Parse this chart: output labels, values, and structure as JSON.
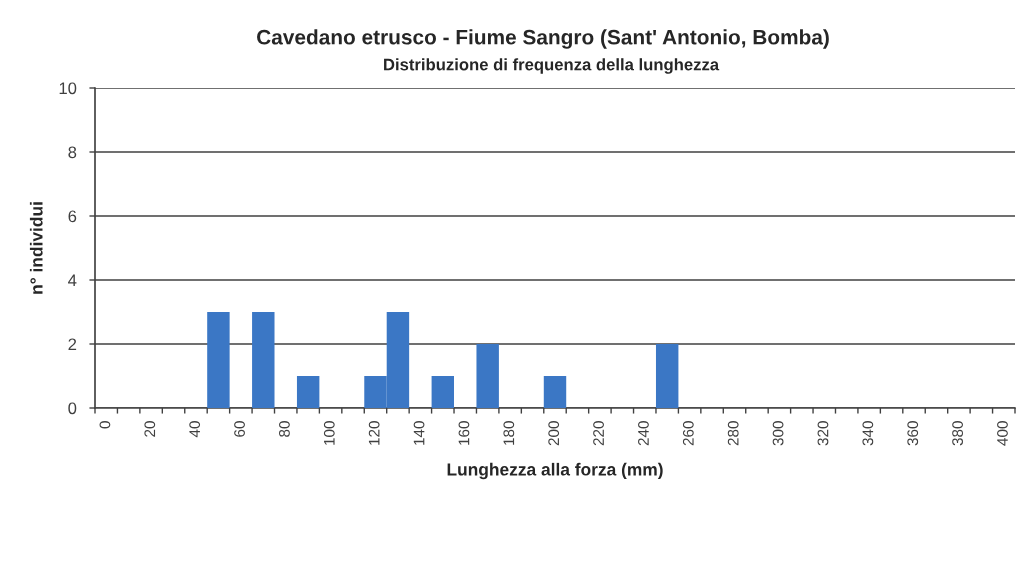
{
  "chart_data": {
    "type": "bar",
    "title": "Cavedano etrusco - Fiume Sangro (Sant' Antonio, Bomba)",
    "subtitle": "Distribuzione di frequenza della lunghezza",
    "xlabel": "Lunghezza alla forza (mm)",
    "ylabel": "n° individui",
    "categories": [
      "0",
      null,
      "20",
      null,
      "40",
      null,
      "60",
      null,
      "80",
      null,
      "100",
      null,
      "120",
      null,
      "140",
      null,
      "160",
      null,
      "180",
      null,
      "200",
      null,
      "220",
      null,
      "240",
      null,
      "260",
      null,
      "280",
      null,
      "300",
      null,
      "320",
      null,
      "340",
      null,
      "360",
      null,
      "380",
      null,
      "400"
    ],
    "values": [
      0,
      0,
      0,
      0,
      0,
      3,
      0,
      3,
      0,
      1,
      0,
      0,
      1,
      3,
      0,
      1,
      0,
      2,
      0,
      0,
      1,
      0,
      0,
      0,
      0,
      2,
      0,
      0,
      0,
      0,
      0,
      0,
      0,
      0,
      0,
      0,
      0,
      0,
      0,
      0,
      0
    ],
    "color": "#3b77c5",
    "ylim": [
      0,
      10
    ],
    "yticks": [
      0,
      2,
      4,
      6,
      8,
      10
    ],
    "grid": "y"
  }
}
